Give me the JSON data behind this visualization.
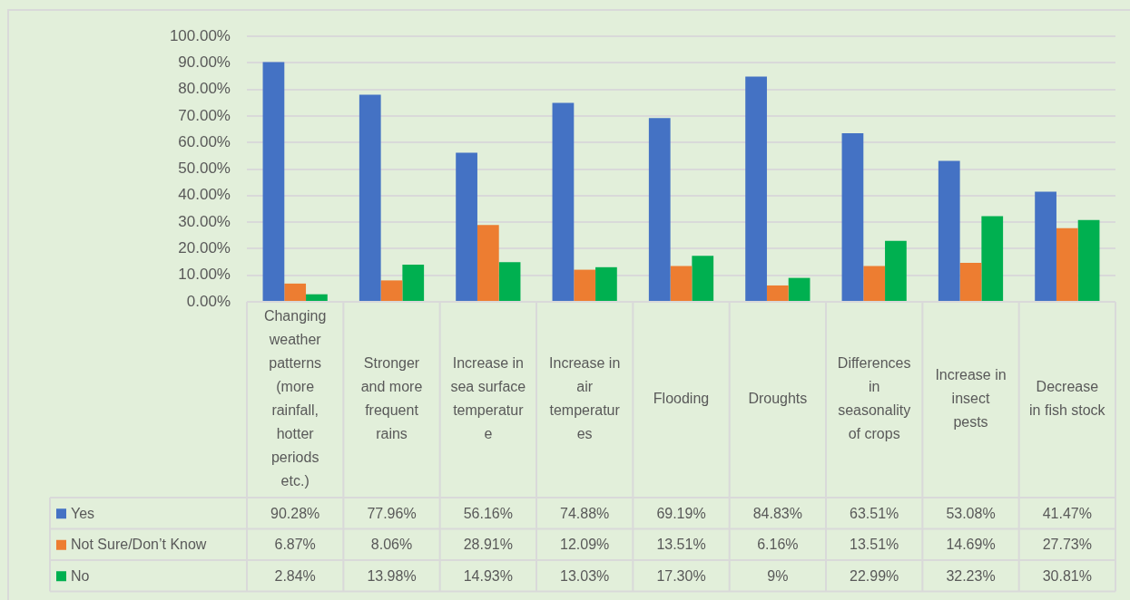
{
  "chart_data": {
    "type": "bar",
    "categories": [
      "Changing weather patterns (more rainfall, hotter periods etc.)",
      "Stronger and more frequent rains",
      "Increase in sea surface temperature",
      "Increase in air temperatures",
      "Flooding",
      "Droughts",
      "Differences in seasonality of crops",
      "Increase in insect pests",
      "Decrease in fish stock"
    ],
    "series": [
      {
        "name": "Yes",
        "color": "#4472c4",
        "values": [
          90.28,
          77.96,
          56.16,
          74.88,
          69.19,
          84.83,
          63.51,
          53.08,
          41.47
        ],
        "value_labels": [
          "90.28%",
          "77.96%",
          "56.16%",
          "74.88%",
          "69.19%",
          "84.83%",
          "63.51%",
          "53.08%",
          "41.47%"
        ]
      },
      {
        "name": "Not Sure/Don’t Know",
        "color": "#ed7d31",
        "values": [
          6.87,
          8.06,
          28.91,
          12.09,
          13.51,
          6.16,
          13.51,
          14.69,
          27.73
        ],
        "value_labels": [
          "6.87%",
          "8.06%",
          "28.91%",
          "12.09%",
          "13.51%",
          "6.16%",
          "13.51%",
          "14.69%",
          "27.73%"
        ]
      },
      {
        "name": "No",
        "color": "#00b050",
        "values": [
          2.84,
          13.98,
          14.93,
          13.03,
          17.3,
          9,
          22.99,
          32.23,
          30.81
        ],
        "value_labels": [
          "2.84%",
          "13.98%",
          "14.93%",
          "13.03%",
          "17.30%",
          "9%",
          "22.99%",
          "32.23%",
          "30.81%"
        ]
      }
    ],
    "ylim": [
      0,
      100
    ],
    "yticks": [
      {
        "value": 0,
        "label": "0.00%"
      },
      {
        "value": 10,
        "label": "10.00%"
      },
      {
        "value": 20,
        "label": "20.00%"
      },
      {
        "value": 30,
        "label": "30.00%"
      },
      {
        "value": 40,
        "label": "40.00%"
      },
      {
        "value": 50,
        "label": "50.00%"
      },
      {
        "value": 60,
        "label": "60.00%"
      },
      {
        "value": 70,
        "label": "70.00%"
      },
      {
        "value": 80,
        "label": "80.00%"
      },
      {
        "value": 90,
        "label": "90.00%"
      },
      {
        "value": 100,
        "label": "100.00%"
      }
    ],
    "grid": "y",
    "legend": "bottom"
  }
}
